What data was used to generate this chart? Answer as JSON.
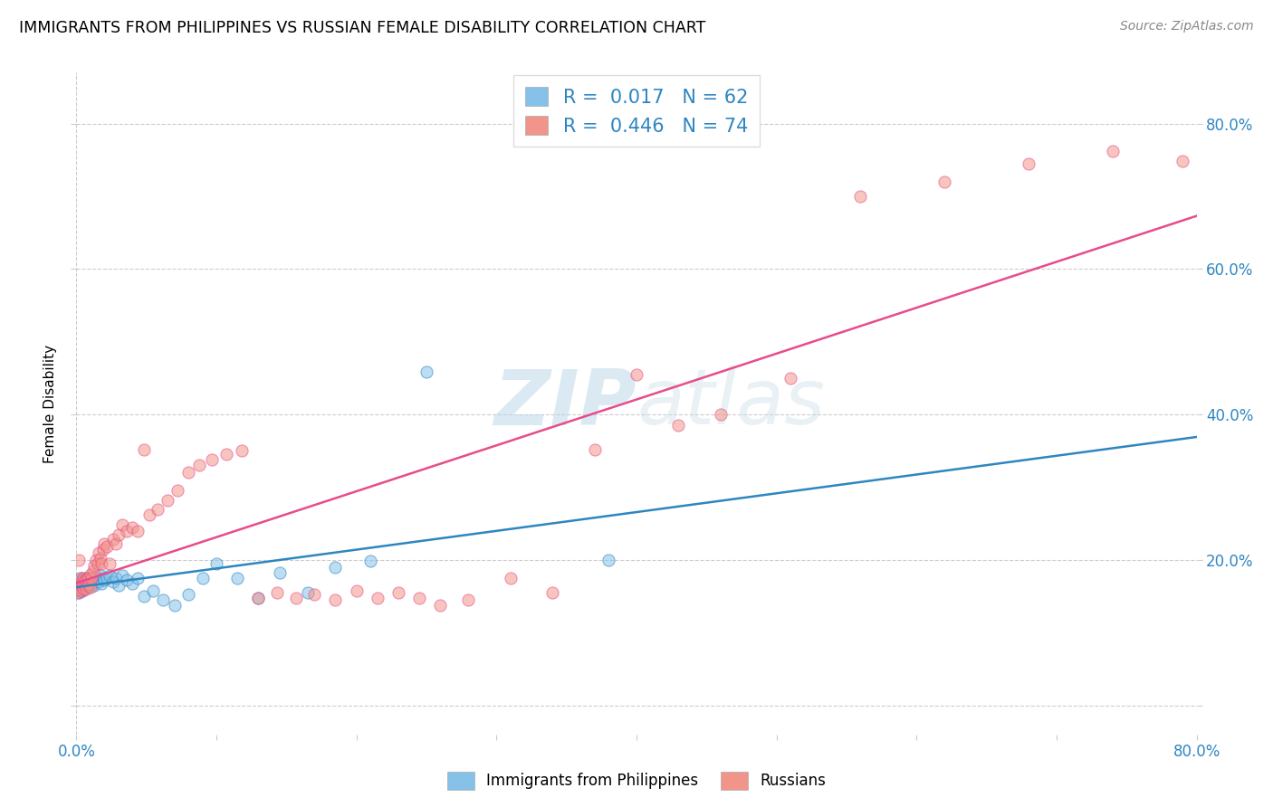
{
  "title": "IMMIGRANTS FROM PHILIPPINES VS RUSSIAN FEMALE DISABILITY CORRELATION CHART",
  "source": "Source: ZipAtlas.com",
  "ylabel": "Female Disability",
  "ytick_values": [
    0.0,
    0.2,
    0.4,
    0.6,
    0.8
  ],
  "ytick_labels_right": [
    "",
    "20.0%",
    "40.0%",
    "60.0%",
    "80.0%"
  ],
  "xtick_values": [
    0.0,
    0.1,
    0.2,
    0.3,
    0.4,
    0.5,
    0.6,
    0.7,
    0.8
  ],
  "xlim": [
    0.0,
    0.8
  ],
  "ylim": [
    -0.04,
    0.87
  ],
  "legend_labels": [
    "Immigrants from Philippines",
    "Russians"
  ],
  "blue_color": "#85c1e9",
  "pink_color": "#f1948a",
  "blue_line_color": "#2e86c1",
  "pink_line_color": "#e74c8b",
  "R_blue": 0.017,
  "N_blue": 62,
  "R_pink": 0.446,
  "N_pink": 74,
  "watermark_zip": "ZIP",
  "watermark_atlas": "atlas",
  "blue_scatter_x": [
    0.001,
    0.001,
    0.001,
    0.002,
    0.002,
    0.002,
    0.002,
    0.003,
    0.003,
    0.003,
    0.003,
    0.004,
    0.004,
    0.004,
    0.005,
    0.005,
    0.005,
    0.006,
    0.006,
    0.006,
    0.007,
    0.007,
    0.008,
    0.008,
    0.009,
    0.009,
    0.01,
    0.01,
    0.011,
    0.012,
    0.013,
    0.014,
    0.015,
    0.016,
    0.017,
    0.018,
    0.019,
    0.02,
    0.022,
    0.024,
    0.026,
    0.028,
    0.03,
    0.033,
    0.036,
    0.04,
    0.044,
    0.048,
    0.055,
    0.062,
    0.07,
    0.08,
    0.09,
    0.1,
    0.115,
    0.13,
    0.145,
    0.165,
    0.185,
    0.21,
    0.25,
    0.38
  ],
  "blue_scatter_y": [
    0.16,
    0.165,
    0.17,
    0.155,
    0.162,
    0.17,
    0.158,
    0.163,
    0.168,
    0.16,
    0.175,
    0.158,
    0.165,
    0.172,
    0.16,
    0.167,
    0.173,
    0.162,
    0.168,
    0.175,
    0.165,
    0.172,
    0.168,
    0.175,
    0.163,
    0.17,
    0.168,
    0.175,
    0.172,
    0.168,
    0.165,
    0.172,
    0.175,
    0.17,
    0.178,
    0.168,
    0.175,
    0.172,
    0.175,
    0.178,
    0.17,
    0.175,
    0.165,
    0.178,
    0.172,
    0.168,
    0.175,
    0.15,
    0.158,
    0.145,
    0.138,
    0.152,
    0.175,
    0.195,
    0.175,
    0.148,
    0.182,
    0.155,
    0.19,
    0.198,
    0.458,
    0.2
  ],
  "pink_scatter_x": [
    0.001,
    0.001,
    0.002,
    0.002,
    0.003,
    0.003,
    0.003,
    0.004,
    0.004,
    0.005,
    0.005,
    0.005,
    0.006,
    0.006,
    0.007,
    0.007,
    0.008,
    0.008,
    0.009,
    0.009,
    0.01,
    0.01,
    0.011,
    0.012,
    0.013,
    0.014,
    0.015,
    0.016,
    0.017,
    0.018,
    0.019,
    0.02,
    0.022,
    0.024,
    0.026,
    0.028,
    0.03,
    0.033,
    0.036,
    0.04,
    0.044,
    0.048,
    0.052,
    0.058,
    0.065,
    0.072,
    0.08,
    0.088,
    0.097,
    0.107,
    0.118,
    0.13,
    0.143,
    0.157,
    0.17,
    0.185,
    0.2,
    0.215,
    0.23,
    0.245,
    0.26,
    0.28,
    0.31,
    0.34,
    0.37,
    0.4,
    0.43,
    0.46,
    0.51,
    0.56,
    0.62,
    0.68,
    0.74,
    0.79
  ],
  "pink_scatter_y": [
    0.155,
    0.165,
    0.16,
    0.2,
    0.158,
    0.168,
    0.175,
    0.162,
    0.168,
    0.16,
    0.168,
    0.175,
    0.165,
    0.172,
    0.16,
    0.172,
    0.165,
    0.175,
    0.168,
    0.175,
    0.162,
    0.18,
    0.175,
    0.185,
    0.192,
    0.2,
    0.195,
    0.21,
    0.202,
    0.195,
    0.215,
    0.222,
    0.218,
    0.195,
    0.228,
    0.222,
    0.235,
    0.248,
    0.24,
    0.245,
    0.24,
    0.352,
    0.262,
    0.27,
    0.282,
    0.295,
    0.32,
    0.33,
    0.338,
    0.345,
    0.35,
    0.148,
    0.155,
    0.148,
    0.152,
    0.145,
    0.158,
    0.148,
    0.155,
    0.148,
    0.138,
    0.145,
    0.175,
    0.155,
    0.352,
    0.455,
    0.385,
    0.4,
    0.45,
    0.7,
    0.72,
    0.745,
    0.762,
    0.748
  ]
}
